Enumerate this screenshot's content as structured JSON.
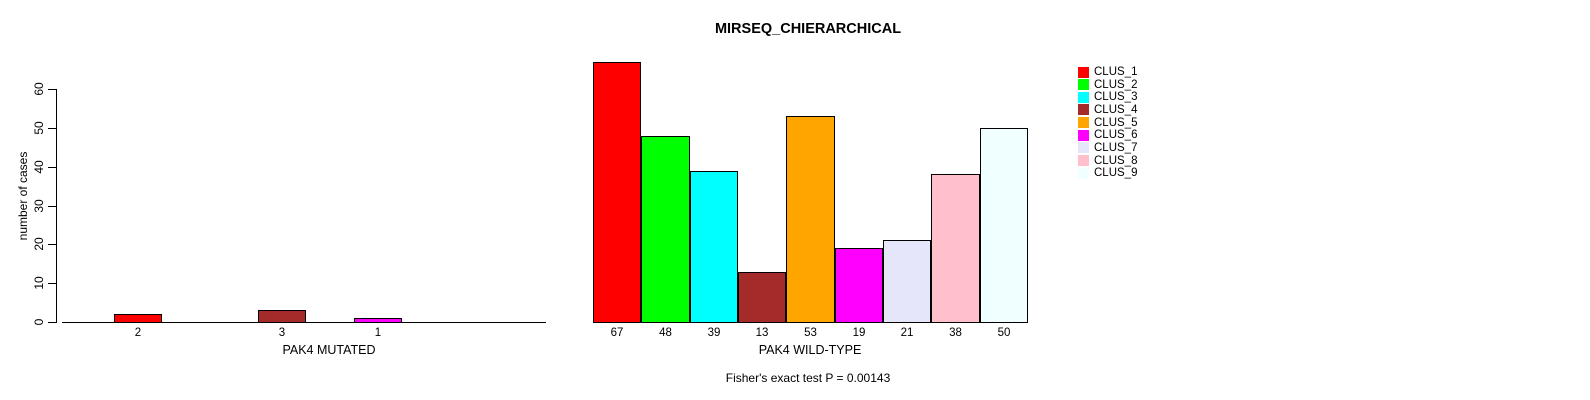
{
  "title": "MIRSEQ_CHIERARCHICAL",
  "footer": "Fisher's exact test P = 0.00143",
  "y_axis": {
    "label": "number of cases",
    "ticks": [
      0,
      10,
      20,
      30,
      40,
      50,
      60
    ],
    "max": 60
  },
  "legend": {
    "position": "right",
    "entries": [
      "CLUS_1",
      "CLUS_2",
      "CLUS_3",
      "CLUS_4",
      "CLUS_5",
      "CLUS_6",
      "CLUS_7",
      "CLUS_8",
      "CLUS_9"
    ],
    "colors": [
      "#FF0000",
      "#00FF00",
      "#00FFFF",
      "#A52A2A",
      "#FFA500",
      "#FF00FF",
      "#E6E6FA",
      "#FFC0CB",
      "#F0FFFF"
    ]
  },
  "chart_data": [
    {
      "type": "bar",
      "title": "MIRSEQ_CHIERARCHICAL",
      "xlabel": "PAK4 MUTATED",
      "ylabel": "number of cases",
      "ylim": [
        0,
        60
      ],
      "yticks": [
        0,
        10,
        20,
        30,
        40,
        50,
        60
      ],
      "grid": false,
      "bar_gap": 0,
      "categories": [
        "CLUS_1",
        "CLUS_2",
        "CLUS_3",
        "CLUS_4",
        "CLUS_5",
        "CLUS_6",
        "CLUS_7",
        "CLUS_8",
        "CLUS_9"
      ],
      "values": [
        2,
        0,
        0,
        3,
        0,
        1,
        0,
        0,
        0
      ],
      "bar_labels": [
        "2",
        "",
        "",
        "3",
        "",
        "1",
        "",
        "",
        ""
      ],
      "colors": [
        "#FF0000",
        "#00FF00",
        "#00FFFF",
        "#A52A2A",
        "#FFA500",
        "#FF00FF",
        "#E6E6FA",
        "#FFC0CB",
        "#F0FFFF"
      ]
    },
    {
      "type": "bar",
      "title": "MIRSEQ_CHIERARCHICAL",
      "xlabel": "PAK4 WILD-TYPE",
      "ylabel": "number of cases",
      "ylim": [
        0,
        60
      ],
      "yticks": [
        0,
        10,
        20,
        30,
        40,
        50,
        60
      ],
      "grid": false,
      "bar_gap": 0,
      "annotation": "Fisher's exact test P = 0.00143",
      "legend_position": "right",
      "categories": [
        "CLUS_1",
        "CLUS_2",
        "CLUS_3",
        "CLUS_4",
        "CLUS_5",
        "CLUS_6",
        "CLUS_7",
        "CLUS_8",
        "CLUS_9"
      ],
      "values": [
        67,
        48,
        39,
        13,
        53,
        19,
        21,
        38,
        50
      ],
      "bar_labels": [
        "67",
        "48",
        "39",
        "13",
        "53",
        "19",
        "21",
        "38",
        "50"
      ],
      "colors": [
        "#FF0000",
        "#00FF00",
        "#00FFFF",
        "#A52A2A",
        "#FFA500",
        "#FF00FF",
        "#E6E6FA",
        "#FFC0CB",
        "#F0FFFF"
      ]
    }
  ]
}
